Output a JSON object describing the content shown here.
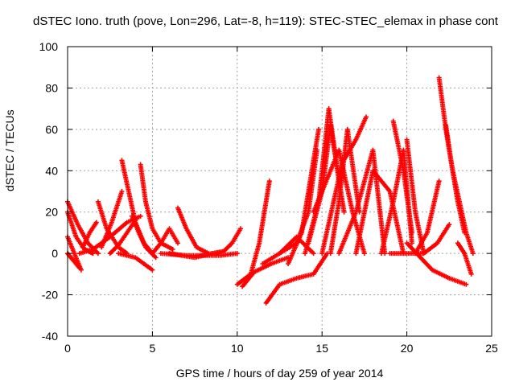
{
  "chart_data": {
    "type": "scatter",
    "title": "dSTEC Iono. truth (pove, Lon=296, Lat=-8, h=119): STEC-STEC_elemax in phase cont",
    "xlabel": "GPS time / hours of day 259 of year 2014",
    "ylabel": "dSTEC  / TECUs",
    "xlim": [
      0,
      25
    ],
    "ylim": [
      -40,
      100
    ],
    "xticks": [
      "0",
      "5",
      "10",
      "15",
      "20",
      "25"
    ],
    "yticks": [
      "-40",
      "-20",
      "0",
      "20",
      "40",
      "60",
      "80",
      "100"
    ],
    "grid": true,
    "marker": "plus",
    "color": "#ff0000",
    "series": [
      {
        "x": [
          0.0,
          0.6,
          1.2,
          1.8
        ],
        "y": [
          25,
          14,
          5,
          0
        ]
      },
      {
        "x": [
          0.0,
          0.5,
          1.0,
          1.5
        ],
        "y": [
          20,
          8,
          2,
          0
        ]
      },
      {
        "x": [
          0.0,
          0.4,
          0.8
        ],
        "y": [
          8,
          0,
          -8
        ]
      },
      {
        "x": [
          0.0,
          0.3,
          0.7
        ],
        "y": [
          0,
          -3,
          -7
        ]
      },
      {
        "x": [
          0.7,
          1.5,
          2.5,
          3.5,
          4.3
        ],
        "y": [
          0,
          2,
          8,
          15,
          18
        ]
      },
      {
        "x": [
          0.9,
          1.3,
          1.7
        ],
        "y": [
          3,
          10,
          15
        ]
      },
      {
        "x": [
          1.8,
          2.3,
          3.0,
          3.5
        ],
        "y": [
          25,
          12,
          3,
          0
        ]
      },
      {
        "x": [
          2.0,
          2.6,
          3.2
        ],
        "y": [
          3,
          15,
          30
        ]
      },
      {
        "x": [
          2.5,
          3.0,
          3.5,
          4.0
        ],
        "y": [
          0,
          4,
          10,
          16
        ]
      },
      {
        "x": [
          3.2,
          3.6,
          4.0,
          4.5,
          5.0
        ],
        "y": [
          45,
          30,
          15,
          5,
          0
        ]
      },
      {
        "x": [
          3.8,
          4.2,
          4.6,
          5.2
        ],
        "y": [
          18,
          10,
          3,
          -2
        ]
      },
      {
        "x": [
          4.3,
          4.6,
          5.0,
          5.5,
          6.2
        ],
        "y": [
          43,
          25,
          12,
          5,
          2
        ]
      },
      {
        "x": [
          3.0,
          4.0,
          5.0
        ],
        "y": [
          0,
          -2,
          -8
        ]
      },
      {
        "x": [
          5.0,
          5.5,
          6.0,
          6.5
        ],
        "y": [
          0,
          5,
          12,
          5
        ]
      },
      {
        "x": [
          6.5,
          7.0,
          7.6,
          8.3
        ],
        "y": [
          22,
          12,
          3,
          0
        ]
      },
      {
        "x": [
          5.5,
          7.0,
          9.0,
          10.0
        ],
        "y": [
          0,
          -1,
          -1,
          0
        ]
      },
      {
        "x": [
          6.0,
          7.5,
          8.5
        ],
        "y": [
          0,
          -2,
          0
        ]
      },
      {
        "x": [
          8.5,
          9.2,
          9.7,
          10.2
        ],
        "y": [
          0,
          1,
          5,
          12
        ]
      },
      {
        "x": [
          10.0,
          10.8,
          11.3,
          11.9
        ],
        "y": [
          -15,
          -10,
          5,
          35
        ]
      },
      {
        "x": [
          10.3,
          11.0,
          12.0,
          13.0
        ],
        "y": [
          -16,
          -9,
          -5,
          -2
        ]
      },
      {
        "x": [
          11.5,
          12.5,
          13.5,
          14.5
        ],
        "y": [
          -5,
          0,
          8,
          0
        ]
      },
      {
        "x": [
          11.7,
          12.5,
          13.5,
          14.5,
          15.3
        ],
        "y": [
          -24,
          -15,
          -12,
          -10,
          0
        ]
      },
      {
        "x": [
          12.5,
          13.5,
          14.2,
          14.7
        ],
        "y": [
          0,
          5,
          20,
          50
        ]
      },
      {
        "x": [
          13.0,
          13.8,
          14.4,
          14.8
        ],
        "y": [
          -5,
          10,
          40,
          60
        ]
      },
      {
        "x": [
          14.0,
          14.8,
          15.4,
          16.0
        ],
        "y": [
          0,
          25,
          70,
          35
        ]
      },
      {
        "x": [
          14.2,
          15.0,
          15.5,
          16.3
        ],
        "y": [
          5,
          30,
          62,
          20
        ]
      },
      {
        "x": [
          15.5,
          16.0,
          16.5,
          17.2
        ],
        "y": [
          0,
          25,
          60,
          20
        ]
      },
      {
        "x": [
          15.0,
          16.2,
          17.0,
          17.6
        ],
        "y": [
          0,
          44,
          55,
          66
        ]
      },
      {
        "x": [
          14.5,
          16.0,
          16.8,
          17.5
        ],
        "y": [
          20,
          50,
          20,
          0
        ]
      },
      {
        "x": [
          16.0,
          17.0,
          18.0,
          18.7
        ],
        "y": [
          0,
          20,
          50,
          0
        ]
      },
      {
        "x": [
          17.0,
          18.0,
          19.0,
          19.8
        ],
        "y": [
          0,
          40,
          30,
          0
        ]
      },
      {
        "x": [
          18.5,
          19.2,
          19.8,
          20.3
        ],
        "y": [
          0,
          25,
          50,
          5
        ]
      },
      {
        "x": [
          19.2,
          19.8,
          20.3
        ],
        "y": [
          64,
          40,
          10
        ]
      },
      {
        "x": [
          20.0,
          20.5,
          21.0
        ],
        "y": [
          55,
          20,
          0
        ]
      },
      {
        "x": [
          20.5,
          21.2,
          21.9
        ],
        "y": [
          0,
          10,
          35
        ]
      },
      {
        "x": [
          20.0,
          21.5,
          22.5,
          23.5
        ],
        "y": [
          5,
          -8,
          -12,
          -15
        ]
      },
      {
        "x": [
          21.0,
          21.8,
          22.5
        ],
        "y": [
          0,
          5,
          14
        ]
      },
      {
        "x": [
          21.9,
          22.3,
          22.7,
          23.1,
          23.5,
          23.9
        ],
        "y": [
          85,
          60,
          40,
          25,
          10,
          0
        ]
      },
      {
        "x": [
          22.3,
          22.6,
          23.0,
          23.4
        ],
        "y": [
          62,
          45,
          25,
          10
        ]
      },
      {
        "x": [
          23.0,
          23.4,
          23.8
        ],
        "y": [
          5,
          0,
          -10
        ]
      },
      {
        "x": [
          19.0,
          20.0,
          21.0
        ],
        "y": [
          0,
          0,
          0
        ]
      }
    ]
  }
}
